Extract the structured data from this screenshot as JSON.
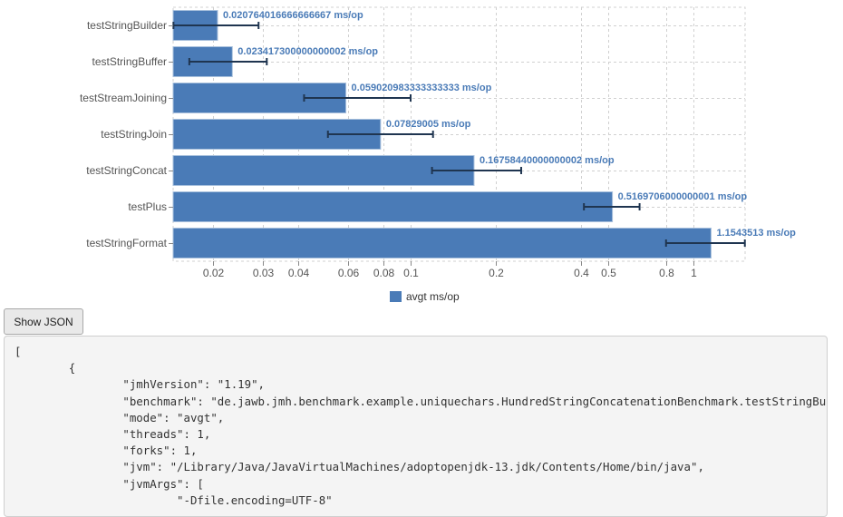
{
  "chart_data": {
    "type": "bar",
    "orientation": "horizontal",
    "title": "",
    "xlabel": "",
    "ylabel": "",
    "x_scale": "log",
    "xlim": [
      0.0145,
      1.52
    ],
    "grid": true,
    "legend_position": "bottom",
    "legend": [
      "avgt ms/op"
    ],
    "unit": "ms/op",
    "x_ticks": [
      "0.02",
      "0.03",
      "0.04",
      "0.06",
      "0.08",
      "0.1",
      "0.2",
      "0.4",
      "0.5",
      "0.8",
      "1"
    ],
    "categories": [
      "testStringBuilder",
      "testStringBuffer",
      "testStreamJoining",
      "testStringJoin",
      "testStringConcat",
      "testPlus",
      "testStringFormat"
    ],
    "series": [
      {
        "name": "avgt ms/op",
        "color": "#4a7bb7",
        "values": [
          0.020764016666666666,
          0.023417300000000002,
          0.05902098333333333,
          0.07829005,
          0.16758440000000002,
          0.5169706000000001,
          1.1543513
        ],
        "labels": [
          "0.020764016666666667 ms/op",
          "0.023417300000000002 ms/op",
          "0.059020983333333333 ms/op",
          "0.07829005 ms/op",
          "0.16758440000000002 ms/op",
          "0.5169706000000001 ms/op",
          "1.1543513 ms/op"
        ],
        "error_low": [
          0.0145,
          0.0165,
          0.042,
          0.051,
          0.119,
          0.41,
          0.8
        ],
        "error_high": [
          0.029,
          0.031,
          0.1,
          0.12,
          0.246,
          0.645,
          1.52
        ]
      }
    ]
  },
  "controls": {
    "show_json_label": "Show JSON"
  },
  "json_panel": {
    "lines": [
      "[",
      "\t{",
      "\t\t\"jmhVersion\": \"1.19\",",
      "\t\t\"benchmark\": \"de.jawb.jmh.benchmark.example.uniquechars.HundredStringConcatenationBenchmark.testStringBuilder\",",
      "\t\t\"mode\": \"avgt\",",
      "\t\t\"threads\": 1,",
      "\t\t\"forks\": 1,",
      "\t\t\"jvm\": \"/Library/Java/JavaVirtualMachines/adoptopenjdk-13.jdk/Contents/Home/bin/java\",",
      "\t\t\"jvmArgs\": [",
      "\t\t\t\"-Dfile.encoding=UTF-8\""
    ]
  }
}
